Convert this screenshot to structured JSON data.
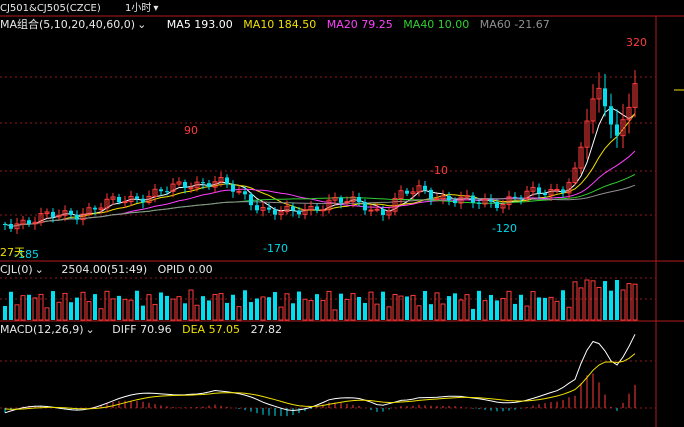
{
  "title_bar": {
    "instrument": "CJ501&CJ505(CZCE)",
    "period": "1小时",
    "period_arrow": "▾"
  },
  "ma_legend": {
    "name": "MA组合(5,10,20,40,60,0)",
    "dropdown": "⌄",
    "items": [
      {
        "label": "MA5 193.00",
        "color": "#ffffff"
      },
      {
        "label": "MA10 184.50",
        "color": "#f0e000"
      },
      {
        "label": "MA20 79.25",
        "color": "#ff40ff"
      },
      {
        "label": "MA40 10.00",
        "color": "#30d030"
      },
      {
        "label": "MA60 -21.67",
        "color": "#909090"
      }
    ]
  },
  "price_annotations": {
    "high_right": "320",
    "peak_left": "90",
    "mid_top": "-10",
    "low_mid": "-170",
    "low_right": "-120",
    "low_left": "-185",
    "left_cut": "27天"
  },
  "volume_legend": {
    "name": "CJL(0)",
    "dropdown": "⌄",
    "value": "2504.00(51:49)",
    "opid": "OPID 0.00"
  },
  "macd_legend": {
    "name": "MACD(12,26,9)",
    "dropdown": "⌄",
    "diff": "DIFF 70.96",
    "dea": "DEA 57.05",
    "macd": "27.82"
  },
  "colors": {
    "up": "#ff3b3b",
    "down": "#00e0f0",
    "grid": "#8a1a1a",
    "ma5": "#ffffff",
    "ma10": "#f0e000",
    "ma20": "#ff40ff",
    "ma40": "#30d030",
    "ma60": "#909090"
  }
}
